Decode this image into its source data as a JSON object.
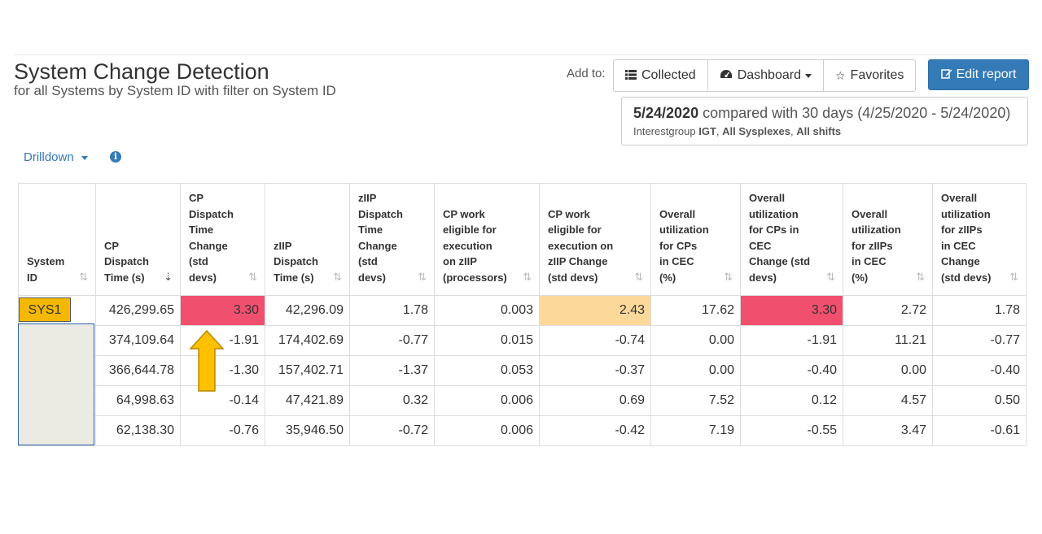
{
  "header": {
    "title": "System Change Detection",
    "subtitle": "for all Systems by System ID with filter on System ID"
  },
  "toolbar": {
    "add_to_label": "Add to:",
    "collected_label": "Collected",
    "dashboard_label": "Dashboard",
    "favorites_label": "Favorites",
    "edit_report_label": "Edit report"
  },
  "info": {
    "date": "5/24/2020",
    "comparison": "compared with 30 days (4/25/2020 - 5/24/2020)",
    "interest_prefix": "Interestgroup",
    "interest_group": "IGT",
    "separator1": ",",
    "sysplexes": "All Sysplexes",
    "separator2": ",",
    "shifts": "All shifts"
  },
  "drilldown": {
    "label": "Drilldown"
  },
  "table": {
    "columns": [
      {
        "lines": [
          "System",
          "ID"
        ]
      },
      {
        "lines": [
          "CP",
          "Dispatch",
          "Time (s)"
        ]
      },
      {
        "lines": [
          "CP",
          "Dispatch",
          "Time",
          "Change",
          "(std",
          "devs)"
        ]
      },
      {
        "lines": [
          "zIIP",
          "Dispatch",
          "Time (s)"
        ]
      },
      {
        "lines": [
          "zIIP",
          "Dispatch",
          "Time",
          "Change",
          "(std",
          "devs)"
        ]
      },
      {
        "lines": [
          "CP work",
          "eligible for",
          "execution",
          "on zIIP",
          "(processors)"
        ]
      },
      {
        "lines": [
          "CP work",
          "eligible for",
          "execution on",
          "zIIP Change",
          "(std devs)"
        ]
      },
      {
        "lines": [
          "Overall",
          "utilization",
          "for CPs",
          "in CEC",
          "(%)"
        ]
      },
      {
        "lines": [
          "Overall",
          "utilization",
          "for CPs in",
          "CEC",
          "Change (std",
          "devs)"
        ]
      },
      {
        "lines": [
          "Overall",
          "utilization",
          "for zIIPs",
          "in CEC",
          "(%)"
        ]
      },
      {
        "lines": [
          "Overall",
          "utilization",
          "for zIIPs",
          "in CEC",
          "Change",
          "(std devs)"
        ]
      }
    ],
    "rows": [
      {
        "system_id": "SYS1",
        "cells": [
          "426,299.65",
          "3.30",
          "42,296.09",
          "1.78",
          "0.003",
          "2.43",
          "17.62",
          "3.30",
          "2.72",
          "1.78"
        ]
      },
      {
        "system_id": "",
        "cells": [
          "374,109.64",
          "-1.91",
          "174,402.69",
          "-0.77",
          "0.015",
          "-0.74",
          "0.00",
          "-1.91",
          "11.21",
          "-0.77"
        ]
      },
      {
        "system_id": "",
        "cells": [
          "366,644.78",
          "-1.30",
          "157,402.71",
          "-1.37",
          "0.053",
          "-0.37",
          "0.00",
          "-0.40",
          "0.00",
          "-0.40"
        ]
      },
      {
        "system_id": "",
        "cells": [
          "64,998.63",
          "-0.14",
          "47,421.89",
          "0.32",
          "0.006",
          "0.69",
          "7.52",
          "0.12",
          "4.57",
          "0.50"
        ]
      },
      {
        "system_id": "",
        "cells": [
          "62,138.30",
          "-0.76",
          "35,946.50",
          "-0.72",
          "0.006",
          "-0.42",
          "7.19",
          "-0.55",
          "3.47",
          "-0.61"
        ]
      }
    ]
  },
  "colors": {
    "high_change": "#f0506e",
    "medium_change": "#fcd99a",
    "highlight": "#f5b800",
    "primary": "#337ab7"
  },
  "icons": {
    "collected": "list-icon",
    "dashboard": "dashboard-gauge-icon",
    "favorites": "star-icon",
    "edit": "edit-icon",
    "info": "info-icon",
    "annotation": "arrow-up-icon"
  }
}
